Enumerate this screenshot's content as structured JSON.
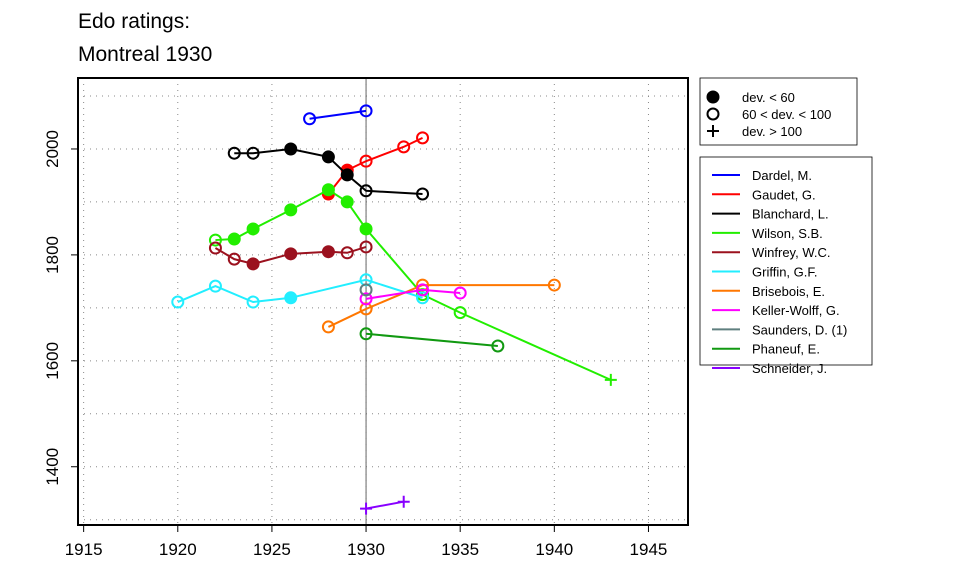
{
  "chart_data": {
    "type": "line",
    "title": [
      "Edo ratings:",
      "Montreal 1930"
    ],
    "xlabel": "",
    "ylabel": "",
    "xlim": [
      1914.7,
      1947.1
    ],
    "ylim": [
      1290,
      2134
    ],
    "xticks": [
      1915,
      1920,
      1925,
      1930,
      1935,
      1940,
      1945
    ],
    "yticks": [
      1400,
      1600,
      1800,
      2000
    ],
    "grid": true,
    "reference_line_x": 1930,
    "marker_legend": [
      {
        "marker": "filled",
        "label": "dev. < 60"
      },
      {
        "marker": "open",
        "label": "60 < dev. < 100"
      },
      {
        "marker": "plus",
        "label": "dev. > 100"
      }
    ],
    "legend_placement": "right",
    "series": [
      {
        "name": "Dardel, M.",
        "color": "#0000ff",
        "points": [
          [
            1927,
            2057,
            "open"
          ],
          [
            1930,
            2072,
            "open"
          ]
        ]
      },
      {
        "name": "Gaudet, G.",
        "color": "#ff0000",
        "points": [
          [
            1928,
            1915,
            "filled"
          ],
          [
            1929,
            1960,
            "filled"
          ],
          [
            1930,
            1977,
            "open"
          ],
          [
            1932,
            2004,
            "open"
          ],
          [
            1933,
            2021,
            "open"
          ]
        ]
      },
      {
        "name": "Blanchard, L.",
        "color": "#000000",
        "points": [
          [
            1923,
            1992,
            "open"
          ],
          [
            1924,
            1992,
            "open"
          ],
          [
            1926,
            2000,
            "filled"
          ],
          [
            1928,
            1985,
            "filled"
          ],
          [
            1929,
            1951,
            "filled"
          ],
          [
            1930,
            1921,
            "open"
          ],
          [
            1933,
            1915,
            "open"
          ]
        ]
      },
      {
        "name": "Wilson, S.B.",
        "color": "#22ee00",
        "points": [
          [
            1922,
            1828,
            "open"
          ],
          [
            1923,
            1830,
            "filled"
          ],
          [
            1924,
            1849,
            "filled"
          ],
          [
            1926,
            1885,
            "filled"
          ],
          [
            1928,
            1923,
            "filled"
          ],
          [
            1929,
            1900,
            "filled"
          ],
          [
            1930,
            1849,
            "filled"
          ],
          [
            1933,
            1725,
            "open"
          ],
          [
            1935,
            1691,
            "open"
          ],
          [
            1943,
            1564,
            "plus"
          ]
        ]
      },
      {
        "name": "Winfrey, W.C.",
        "color": "#9b111e",
        "points": [
          [
            1922,
            1813,
            "open"
          ],
          [
            1923,
            1792,
            "open"
          ],
          [
            1924,
            1783,
            "filled"
          ],
          [
            1926,
            1802,
            "filled"
          ],
          [
            1928,
            1806,
            "filled"
          ],
          [
            1929,
            1804,
            "open"
          ],
          [
            1930,
            1815,
            "open"
          ]
        ]
      },
      {
        "name": "Griffin, G.F.",
        "color": "#22eeff",
        "points": [
          [
            1920,
            1711,
            "open"
          ],
          [
            1922,
            1741,
            "open"
          ],
          [
            1924,
            1711,
            "open"
          ],
          [
            1926,
            1719,
            "filled"
          ],
          [
            1930,
            1753,
            "open"
          ],
          [
            1933,
            1719,
            "open"
          ]
        ]
      },
      {
        "name": "Brisebois, E.",
        "color": "#ff7700",
        "points": [
          [
            1928,
            1664,
            "open"
          ],
          [
            1930,
            1698,
            "open"
          ],
          [
            1933,
            1743,
            "open"
          ],
          [
            1940,
            1743,
            "open"
          ]
        ]
      },
      {
        "name": "Keller-Wolff, G.",
        "color": "#ff00ff",
        "points": [
          [
            1930,
            1717,
            "open"
          ],
          [
            1933,
            1734,
            "open"
          ],
          [
            1935,
            1728,
            "open"
          ]
        ]
      },
      {
        "name": "Saunders, D. (1)",
        "color": "#5f7f7f",
        "points": [
          [
            1930,
            1734,
            "open"
          ]
        ]
      },
      {
        "name": "Phaneuf, E.",
        "color": "#119911",
        "points": [
          [
            1930,
            1651,
            "open"
          ],
          [
            1937,
            1628,
            "open"
          ]
        ]
      },
      {
        "name": "Schneider, J.",
        "color": "#8800ff",
        "points": [
          [
            1930,
            1321,
            "plus"
          ],
          [
            1932,
            1334,
            "plus"
          ]
        ]
      }
    ]
  }
}
